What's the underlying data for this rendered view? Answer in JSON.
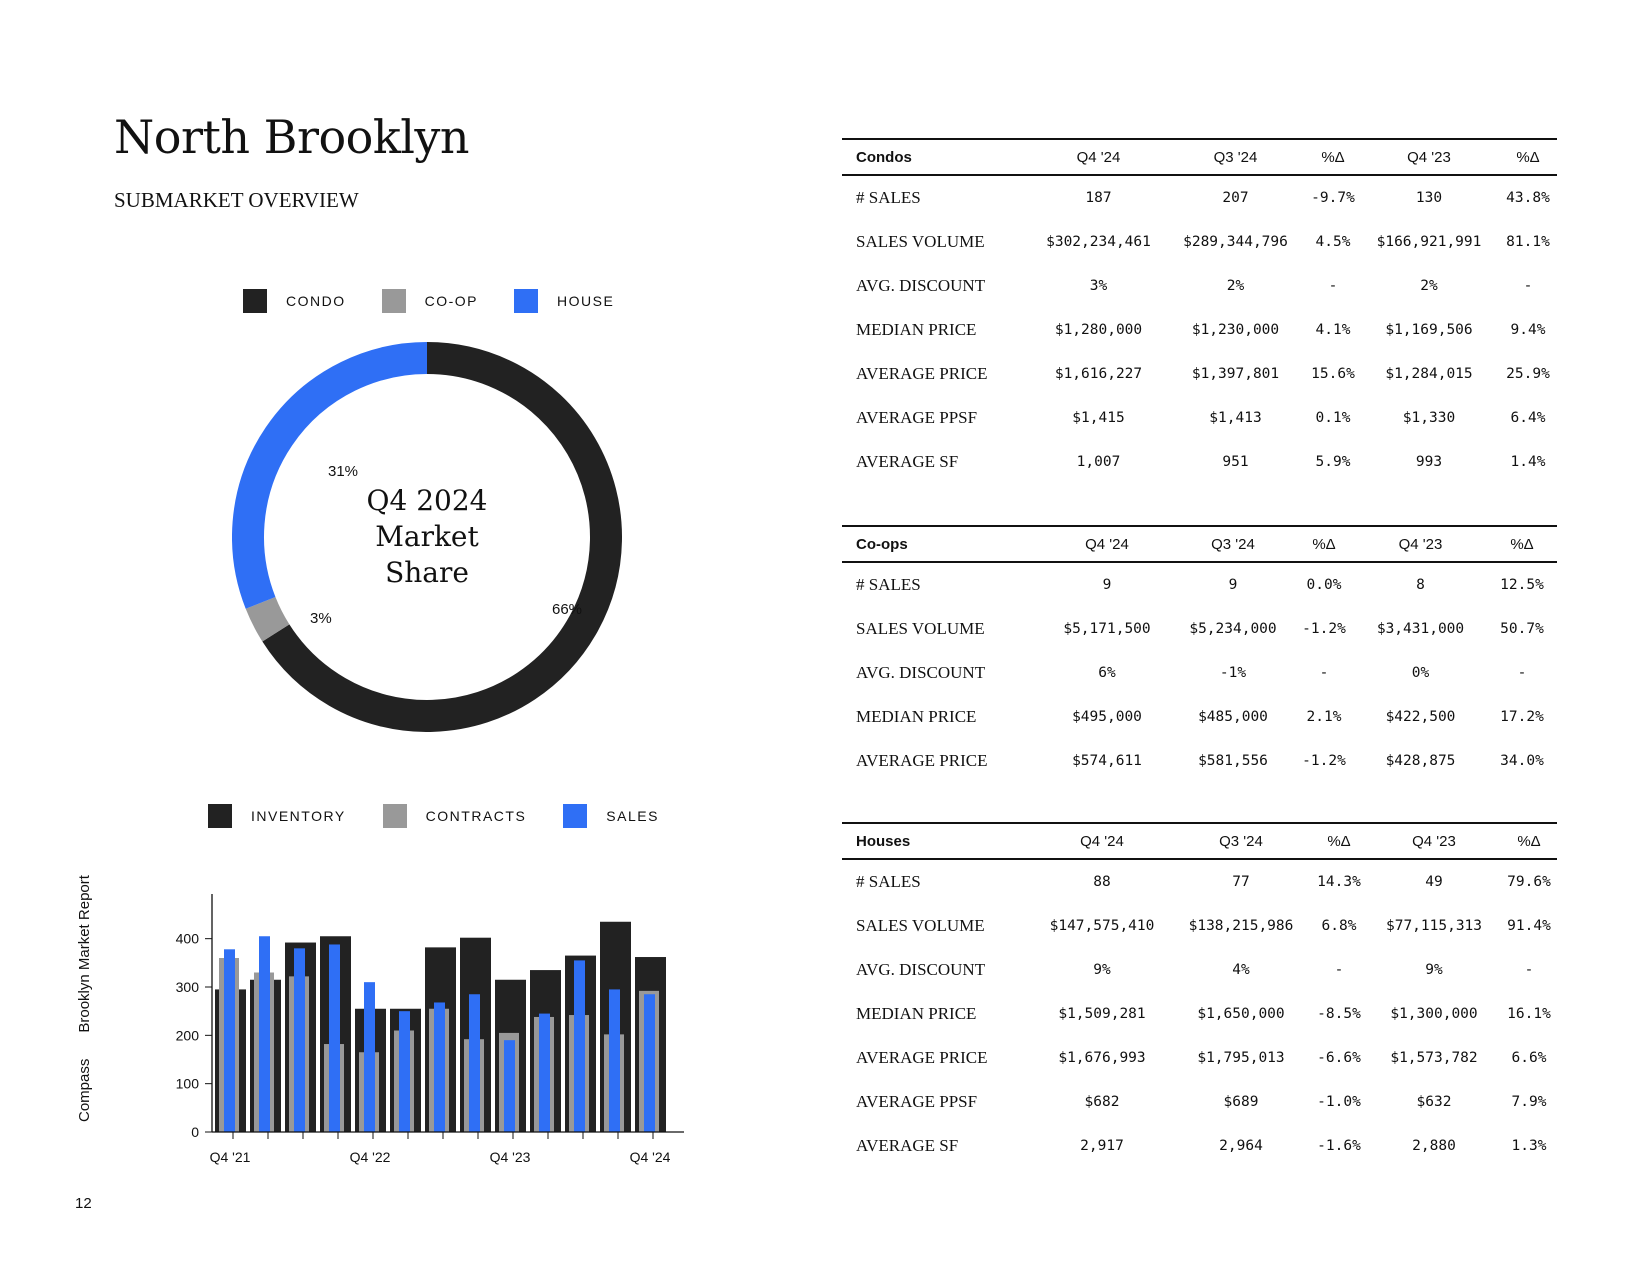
{
  "header": {
    "title": "North Brooklyn",
    "subtitle": "SUBMARKET OVERVIEW"
  },
  "donut": {
    "legend": [
      {
        "label": "CONDO",
        "color": "#222222"
      },
      {
        "label": "CO-OP",
        "color": "#999999"
      },
      {
        "label": "HOUSE",
        "color": "#2f6ff5"
      }
    ],
    "center_lines": [
      "Q4 2024",
      "Market",
      "Share"
    ],
    "segments": [
      {
        "name": "CONDO",
        "value": 66,
        "label": "66%",
        "color": "#222222"
      },
      {
        "name": "CO-OP",
        "value": 3,
        "label": "3%",
        "color": "#999999"
      },
      {
        "name": "HOUSE",
        "value": 31,
        "label": "31%",
        "color": "#2f6ff5"
      }
    ]
  },
  "bar_legend": [
    {
      "label": "INVENTORY",
      "color": "#222222"
    },
    {
      "label": "CONTRACTS",
      "color": "#999999"
    },
    {
      "label": "SALES",
      "color": "#2f6ff5"
    }
  ],
  "chart_data": {
    "type": "bar",
    "categories": [
      "Q4 '21",
      "Q1 '22",
      "Q2 '22",
      "Q3 '22",
      "Q4 '22",
      "Q1 '23",
      "Q2 '23",
      "Q3 '23",
      "Q4 '23",
      "Q1 '24",
      "Q2 '24",
      "Q3 '24",
      "Q4 '24"
    ],
    "tick_labels": [
      "Q4 '21",
      "Q4 '22",
      "Q4 '23",
      "Q4 '24"
    ],
    "yticks": [
      0,
      100,
      200,
      300,
      400
    ],
    "ylim": [
      0,
      480
    ],
    "series": [
      {
        "name": "INVENTORY",
        "color": "#222222",
        "values": [
          295,
          315,
          392,
          405,
          255,
          255,
          382,
          402,
          315,
          335,
          365,
          435,
          362
        ]
      },
      {
        "name": "CONTRACTS",
        "color": "#999999",
        "values": [
          360,
          330,
          322,
          182,
          165,
          210,
          255,
          192,
          205,
          238,
          242,
          202,
          292
        ]
      },
      {
        "name": "SALES",
        "color": "#2f6ff5",
        "values": [
          378,
          405,
          380,
          388,
          310,
          250,
          268,
          285,
          190,
          245,
          355,
          295,
          285
        ]
      }
    ],
    "xlabel": "",
    "ylabel": "",
    "grid": false,
    "legend_position": "top"
  },
  "side_label": {
    "left": "Compass",
    "right": "Brooklyn Market Report"
  },
  "page_number": "12",
  "tables": [
    {
      "category": "Condos",
      "headers": [
        "Q4 '24",
        "Q3 '24",
        "%Δ",
        "Q4 '23",
        "%Δ"
      ],
      "rows": [
        {
          "metric": "# SALES",
          "values": [
            "187",
            "207",
            "-9.7%",
            "130",
            "43.8%"
          ]
        },
        {
          "metric": "SALES VOLUME",
          "values": [
            "$302,234,461",
            "$289,344,796",
            "4.5%",
            "$166,921,991",
            "81.1%"
          ]
        },
        {
          "metric": "AVG. DISCOUNT",
          "values": [
            "3%",
            "2%",
            "-",
            "2%",
            "-"
          ]
        },
        {
          "metric": "MEDIAN PRICE",
          "values": [
            "$1,280,000",
            "$1,230,000",
            "4.1%",
            "$1,169,506",
            "9.4%"
          ]
        },
        {
          "metric": "AVERAGE PRICE",
          "values": [
            "$1,616,227",
            "$1,397,801",
            "15.6%",
            "$1,284,015",
            "25.9%"
          ]
        },
        {
          "metric": "AVERAGE PPSF",
          "values": [
            "$1,415",
            "$1,413",
            "0.1%",
            "$1,330",
            "6.4%"
          ]
        },
        {
          "metric": "AVERAGE SF",
          "values": [
            "1,007",
            "951",
            "5.9%",
            "993",
            "1.4%"
          ]
        }
      ]
    },
    {
      "category": "Co-ops",
      "headers": [
        "Q4 '24",
        "Q3 '24",
        "%Δ",
        "Q4 '23",
        "%Δ"
      ],
      "rows": [
        {
          "metric": "# SALES",
          "values": [
            "9",
            "9",
            "0.0%",
            "8",
            "12.5%"
          ]
        },
        {
          "metric": "SALES VOLUME",
          "values": [
            "$5,171,500",
            "$5,234,000",
            "-1.2%",
            "$3,431,000",
            "50.7%"
          ]
        },
        {
          "metric": "AVG. DISCOUNT",
          "values": [
            "6%",
            "-1%",
            "-",
            "0%",
            "-"
          ]
        },
        {
          "metric": "MEDIAN PRICE",
          "values": [
            "$495,000",
            "$485,000",
            "2.1%",
            "$422,500",
            "17.2%"
          ]
        },
        {
          "metric": "AVERAGE PRICE",
          "values": [
            "$574,611",
            "$581,556",
            "-1.2%",
            "$428,875",
            "34.0%"
          ]
        }
      ]
    },
    {
      "category": "Houses",
      "headers": [
        "Q4 '24",
        "Q3 '24",
        "%Δ",
        "Q4 '23",
        "%Δ"
      ],
      "rows": [
        {
          "metric": "# SALES",
          "values": [
            "88",
            "77",
            "14.3%",
            "49",
            "79.6%"
          ]
        },
        {
          "metric": "SALES VOLUME",
          "values": [
            "$147,575,410",
            "$138,215,986",
            "6.8%",
            "$77,115,313",
            "91.4%"
          ]
        },
        {
          "metric": "AVG. DISCOUNT",
          "values": [
            "9%",
            "4%",
            "-",
            "9%",
            "-"
          ]
        },
        {
          "metric": "MEDIAN PRICE",
          "values": [
            "$1,509,281",
            "$1,650,000",
            "-8.5%",
            "$1,300,000",
            "16.1%"
          ]
        },
        {
          "metric": "AVERAGE PRICE",
          "values": [
            "$1,676,993",
            "$1,795,013",
            "-6.6%",
            "$1,573,782",
            "6.6%"
          ]
        },
        {
          "metric": "AVERAGE PPSF",
          "values": [
            "$682",
            "$689",
            "-1.0%",
            "$632",
            "7.9%"
          ]
        },
        {
          "metric": "AVERAGE SF",
          "values": [
            "2,917",
            "2,964",
            "-1.6%",
            "2,880",
            "1.3%"
          ]
        }
      ]
    }
  ]
}
